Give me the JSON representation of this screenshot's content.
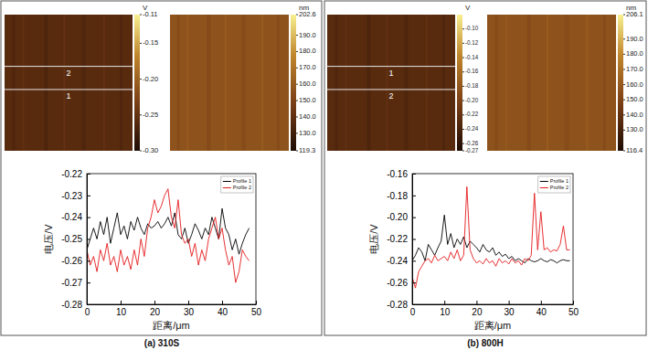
{
  "chart_data": [
    {
      "type": "image",
      "colorbar_label": "V",
      "colorbar_range": [
        -0.3,
        -0.11
      ],
      "colorbar_ticks": [
        -0.11,
        -0.15,
        {
          "value": -0.2,
          "label": "-0.20"
        },
        -0.25,
        {
          "value": -0.3,
          "label": "-0.30"
        }
      ],
      "annotations": [
        "2",
        "1"
      ]
    },
    {
      "type": "image",
      "colorbar_label": "nm",
      "colorbar_range": [
        119.3,
        202.6
      ],
      "colorbar_ticks": [
        202.6,
        {
          "value": 190,
          "label": "190.0"
        },
        {
          "value": 180,
          "label": "180.0"
        },
        {
          "value": 170,
          "label": "170.0"
        },
        {
          "value": 160,
          "label": "160.0"
        },
        {
          "value": 150,
          "label": "150.0"
        },
        {
          "value": 140,
          "label": "140.0"
        },
        {
          "value": 130,
          "label": "130.0"
        },
        119.3
      ]
    },
    {
      "type": "line",
      "title": "(a) 310S",
      "x_label": "距离/μm",
      "y_label": "电压/V",
      "x": [
        0,
        1,
        2,
        3,
        4,
        5,
        6,
        7,
        8,
        9,
        10,
        11,
        12,
        13,
        14,
        15,
        16,
        17,
        18,
        19,
        20,
        21,
        22,
        23,
        24,
        25,
        26,
        27,
        28,
        29,
        30,
        31,
        32,
        33,
        34,
        35,
        36,
        37,
        38,
        39,
        40,
        41,
        42,
        43,
        44,
        45,
        46,
        47,
        48
      ],
      "xlim": [
        0,
        50
      ],
      "xticks": [
        0,
        10,
        20,
        30,
        40,
        50
      ],
      "ylim": [
        -0.28,
        -0.22
      ],
      "yticks": [
        -0.28,
        -0.27,
        -0.26,
        -0.25,
        -0.24,
        -0.23,
        -0.22
      ],
      "grid": false,
      "legend": "upper right",
      "series": [
        {
          "name": "Profile 1",
          "color": "#000000",
          "values": [
            -0.255,
            -0.25,
            -0.245,
            -0.25,
            -0.242,
            -0.248,
            -0.24,
            -0.252,
            -0.245,
            -0.238,
            -0.248,
            -0.244,
            -0.25,
            -0.242,
            -0.246,
            -0.24,
            -0.245,
            -0.248,
            -0.243,
            -0.245,
            -0.244,
            -0.242,
            -0.245,
            -0.243,
            -0.24,
            -0.244,
            -0.238,
            -0.248,
            -0.25,
            -0.245,
            -0.252,
            -0.248,
            -0.243,
            -0.246,
            -0.25,
            -0.245,
            -0.248,
            -0.24,
            -0.245,
            -0.25,
            -0.236,
            -0.245,
            -0.248,
            -0.255,
            -0.25,
            -0.257,
            -0.252,
            -0.248,
            -0.245
          ]
        },
        {
          "name": "Profile 2",
          "color": "#e41a1c",
          "values": [
            -0.255,
            -0.262,
            -0.258,
            -0.265,
            -0.255,
            -0.26,
            -0.252,
            -0.262,
            -0.258,
            -0.265,
            -0.255,
            -0.262,
            -0.258,
            -0.264,
            -0.255,
            -0.262,
            -0.25,
            -0.258,
            -0.245,
            -0.24,
            -0.232,
            -0.238,
            -0.235,
            -0.23,
            -0.227,
            -0.24,
            -0.245,
            -0.232,
            -0.248,
            -0.252,
            -0.25,
            -0.258,
            -0.252,
            -0.262,
            -0.255,
            -0.26,
            -0.25,
            -0.245,
            -0.24,
            -0.25,
            -0.245,
            -0.255,
            -0.262,
            -0.258,
            -0.27,
            -0.265,
            -0.255,
            -0.258,
            -0.26
          ]
        }
      ]
    },
    {
      "type": "image",
      "colorbar_label": "V",
      "colorbar_range": [
        -0.27,
        -0.08
      ],
      "colorbar_ticks": [
        {
          "value": -0.1,
          "label": "-0.10"
        },
        -0.12,
        -0.14,
        -0.16,
        -0.18,
        {
          "value": -0.2,
          "label": "-0.20"
        },
        -0.22,
        -0.24,
        -0.26,
        -0.27
      ],
      "annotations": [
        "1",
        "2"
      ]
    },
    {
      "type": "image",
      "colorbar_label": "nm",
      "colorbar_range": [
        116.4,
        206.1
      ],
      "colorbar_ticks": [
        206.1,
        {
          "value": 190,
          "label": "190.0"
        },
        {
          "value": 180,
          "label": "180.0"
        },
        {
          "value": 170,
          "label": "170.0"
        },
        {
          "value": 160,
          "label": "160.0"
        },
        {
          "value": 150,
          "label": "150.0"
        },
        {
          "value": 140,
          "label": "140.0"
        },
        {
          "value": 130,
          "label": "130.0"
        },
        116.4
      ]
    },
    {
      "type": "line",
      "title": "(b) 800H",
      "x_label": "距离/μm",
      "y_label": "电压/V",
      "x": [
        0,
        1,
        2,
        3,
        4,
        5,
        6,
        7,
        8,
        9,
        10,
        11,
        12,
        13,
        14,
        15,
        16,
        17,
        18,
        19,
        20,
        21,
        22,
        23,
        24,
        25,
        26,
        27,
        28,
        29,
        30,
        31,
        32,
        33,
        34,
        35,
        36,
        37,
        38,
        39,
        40,
        41,
        42,
        43,
        44,
        45,
        46,
        47,
        48,
        49
      ],
      "xlim": [
        0,
        50
      ],
      "xticks": [
        0,
        10,
        20,
        30,
        40,
        50
      ],
      "ylim": [
        -0.28,
        -0.16
      ],
      "yticks": [
        -0.28,
        -0.26,
        -0.24,
        -0.22,
        {
          "value": -0.2,
          "label": "-0.20"
        },
        -0.18,
        -0.16
      ],
      "grid": false,
      "legend": "upper right",
      "series": [
        {
          "name": "Profile 1",
          "color": "#000000",
          "values": [
            -0.24,
            -0.235,
            -0.228,
            -0.232,
            -0.24,
            -0.225,
            -0.23,
            -0.235,
            -0.228,
            -0.222,
            -0.198,
            -0.225,
            -0.215,
            -0.228,
            -0.22,
            -0.225,
            -0.218,
            -0.228,
            -0.222,
            -0.225,
            -0.228,
            -0.232,
            -0.225,
            -0.23,
            -0.232,
            -0.228,
            -0.235,
            -0.232,
            -0.236,
            -0.234,
            -0.238,
            -0.236,
            -0.24,
            -0.238,
            -0.24,
            -0.242,
            -0.238,
            -0.24,
            -0.241,
            -0.24,
            -0.238,
            -0.24,
            -0.241,
            -0.239,
            -0.24,
            -0.242,
            -0.24,
            -0.239,
            -0.24,
            -0.24
          ]
        },
        {
          "name": "Profile 2",
          "color": "#e41a1c",
          "values": [
            -0.255,
            -0.265,
            -0.25,
            -0.245,
            -0.24,
            -0.238,
            -0.242,
            -0.235,
            -0.24,
            -0.238,
            -0.236,
            -0.24,
            -0.232,
            -0.238,
            -0.23,
            -0.24,
            -0.235,
            -0.172,
            -0.23,
            -0.238,
            -0.242,
            -0.24,
            -0.243,
            -0.238,
            -0.242,
            -0.24,
            -0.245,
            -0.238,
            -0.242,
            -0.24,
            -0.243,
            -0.238,
            -0.242,
            -0.24,
            -0.244,
            -0.238,
            -0.24,
            -0.235,
            -0.178,
            -0.23,
            -0.195,
            -0.23,
            -0.228,
            -0.232,
            -0.23,
            -0.231,
            -0.225,
            -0.208,
            -0.23,
            -0.23
          ]
        }
      ]
    }
  ]
}
